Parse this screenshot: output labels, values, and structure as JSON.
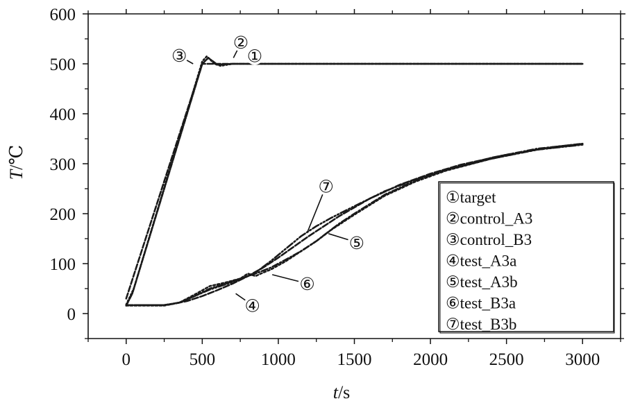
{
  "chart_data": {
    "type": "line",
    "xlabel": {
      "italic": "t",
      "rest": "/s"
    },
    "ylabel": {
      "italic": "T",
      "rest": "/℃"
    },
    "xlim": [
      -250,
      3250
    ],
    "ylim": [
      -50,
      600
    ],
    "xticks": [
      0,
      500,
      1000,
      1500,
      2000,
      2500,
      3000
    ],
    "yticks": [
      0,
      100,
      200,
      300,
      400,
      500,
      600
    ],
    "grid": false,
    "legend_position": "bottom-right",
    "series": [
      {
        "marker": "①",
        "name": "target",
        "dash": "8 3",
        "x": [
          0,
          500,
          3000
        ],
        "y": [
          30,
          500,
          500
        ]
      },
      {
        "marker": "②",
        "name": "control_A3",
        "dash": "2 3",
        "x": [
          0,
          50,
          500,
          530,
          580,
          620,
          700,
          3000
        ],
        "y": [
          18,
          50,
          505,
          515,
          500,
          496,
          500,
          500
        ]
      },
      {
        "marker": "③",
        "name": "control_B3",
        "dash": "6 2 1 2",
        "x": [
          0,
          40,
          500,
          540,
          600,
          700,
          3000
        ],
        "y": [
          16,
          40,
          500,
          512,
          498,
          500,
          500
        ]
      },
      {
        "marker": "④",
        "name": "test_A3a",
        "dash": "9 3",
        "x": [
          0,
          150,
          250,
          300,
          400,
          500,
          600,
          700,
          800,
          900,
          1000,
          1200,
          1400,
          1600,
          1800,
          2000,
          2200,
          2500,
          2800,
          3000
        ],
        "y": [
          17,
          17,
          17,
          19,
          25,
          35,
          47,
          60,
          75,
          92,
          112,
          155,
          195,
          230,
          258,
          280,
          298,
          318,
          333,
          340
        ]
      },
      {
        "marker": "⑤",
        "name": "test_A3b",
        "dash": "9 3 2 3",
        "x": [
          0,
          250,
          350,
          450,
          550,
          650,
          750,
          850,
          950,
          1050,
          1150,
          1250,
          1300,
          1400,
          1500,
          1700,
          1900,
          2100,
          2400,
          2700,
          3000
        ],
        "y": [
          17,
          17,
          22,
          35,
          50,
          60,
          70,
          80,
          92,
          108,
          125,
          145,
          157,
          180,
          200,
          238,
          266,
          288,
          312,
          330,
          340
        ]
      },
      {
        "marker": "⑥",
        "name": "test_B3a",
        "dash": "3 3",
        "x": [
          0,
          250,
          350,
          450,
          550,
          650,
          750,
          800,
          850,
          900,
          950,
          1050,
          1150,
          1250,
          1350,
          1500,
          1700,
          1900,
          2100,
          2400,
          2700,
          3000
        ],
        "y": [
          16,
          16,
          22,
          38,
          55,
          62,
          70,
          80,
          75,
          82,
          88,
          105,
          125,
          145,
          168,
          198,
          236,
          264,
          286,
          310,
          328,
          339
        ]
      },
      {
        "marker": "⑦",
        "name": "test_B3b",
        "dash": "10 3 2 3 2 3",
        "x": [
          0,
          250,
          350,
          450,
          550,
          650,
          750,
          850,
          950,
          1050,
          1150,
          1250,
          1350,
          1500,
          1700,
          1900,
          2100,
          2400,
          2700,
          3000
        ],
        "y": [
          17,
          17,
          22,
          35,
          48,
          58,
          68,
          82,
          105,
          130,
          155,
          175,
          192,
          215,
          245,
          268,
          287,
          310,
          328,
          338
        ]
      }
    ],
    "annotations": [
      {
        "text": "①",
        "x": 845,
        "y": 516
      },
      {
        "text": "②",
        "x": 754,
        "y": 543
      },
      {
        "text": "③",
        "x": 349,
        "y": 517
      },
      {
        "text": "④",
        "x": 830,
        "y": 16
      },
      {
        "text": "⑤",
        "x": 1515,
        "y": 142
      },
      {
        "text": "⑥",
        "x": 1190,
        "y": 60
      },
      {
        "text": "⑦",
        "x": 1314,
        "y": 255
      }
    ]
  }
}
